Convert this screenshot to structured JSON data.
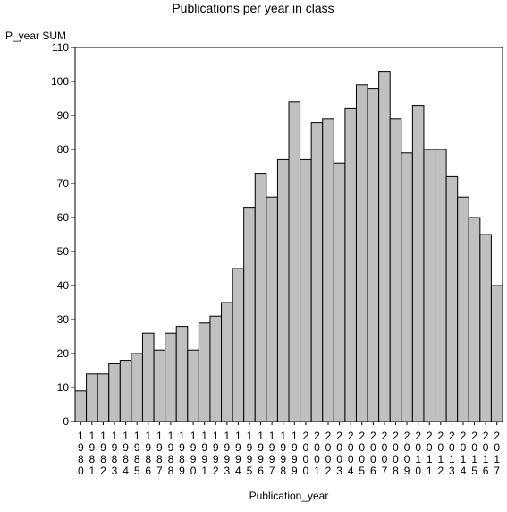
{
  "chart_data": {
    "type": "bar",
    "title": "Publications per year in class",
    "xlabel": "Publication_year",
    "ylabel": "P_year SUM",
    "ylim": [
      0,
      110
    ],
    "yticks": [
      0,
      10,
      20,
      30,
      40,
      50,
      60,
      70,
      80,
      90,
      100,
      110
    ],
    "grid": false,
    "bar_color": "#c0c0c0",
    "categories": [
      "1980",
      "1981",
      "1982",
      "1983",
      "1984",
      "1985",
      "1986",
      "1987",
      "1988",
      "1989",
      "1990",
      "1991",
      "1992",
      "1993",
      "1994",
      "1995",
      "1996",
      "1997",
      "1998",
      "1999",
      "2000",
      "2001",
      "2002",
      "2003",
      "2004",
      "2005",
      "2006",
      "2007",
      "2008",
      "2009",
      "2010",
      "2011",
      "2012",
      "2013",
      "2014",
      "2015",
      "2016",
      "2017"
    ],
    "values": [
      9,
      14,
      14,
      17,
      18,
      20,
      26,
      21,
      26,
      28,
      21,
      29,
      31,
      35,
      45,
      63,
      73,
      66,
      77,
      94,
      77,
      88,
      89,
      76,
      92,
      99,
      98,
      103,
      89,
      79,
      93,
      80,
      80,
      72,
      66,
      60,
      55,
      40
    ]
  }
}
